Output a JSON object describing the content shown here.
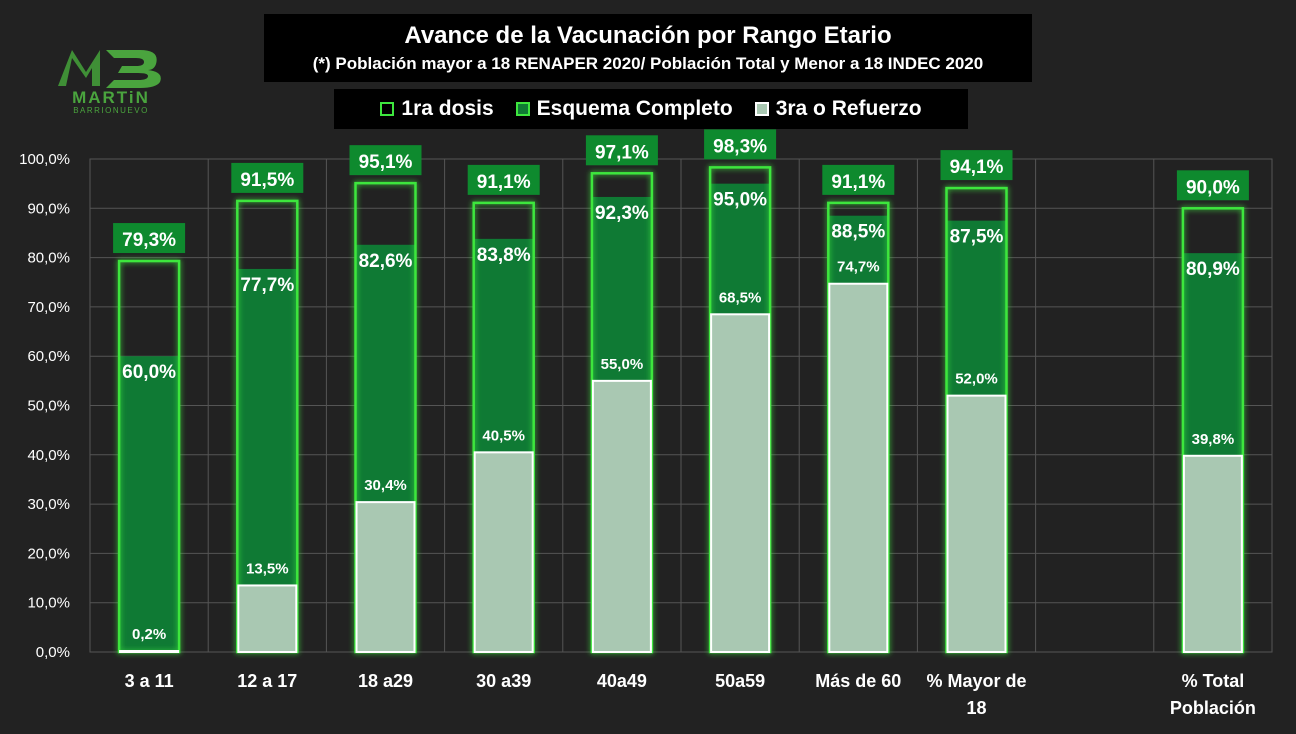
{
  "logo": {
    "name": "MARTiN",
    "surname": "BARRIONUEVO"
  },
  "colors": {
    "background": "#222222",
    "first_dose_border": "#3ee63e",
    "complete": "#0f7a34",
    "booster": "#a9c8b2",
    "booster_border": "#ffffff",
    "label_badge": "#0e8a2e",
    "grid": "#555555",
    "text": "#ffffff"
  },
  "chart_data": {
    "type": "bar",
    "title": "Avance de la Vacunación por Rango Etario",
    "subtitle": "(*) Población mayor a 18 RENAPER 2020/ Población Total y Menor a 18 INDEC 2020",
    "ylim": [
      0,
      100
    ],
    "yticks": [
      "0,0%",
      "10,0%",
      "20,0%",
      "30,0%",
      "40,0%",
      "50,0%",
      "60,0%",
      "70,0%",
      "80,0%",
      "90,0%",
      "100,0%"
    ],
    "categories": [
      "3 a 11",
      "12 a 17",
      "18 a29",
      "30 a39",
      "40a49",
      "50a59",
      "Más de 60",
      "% Mayor de 18",
      "",
      "% Total Población"
    ],
    "category_lines": [
      [
        "3 a 11"
      ],
      [
        "12 a 17"
      ],
      [
        "18 a29"
      ],
      [
        "30 a39"
      ],
      [
        "40a49"
      ],
      [
        "50a59"
      ],
      [
        "Más de 60"
      ],
      [
        "% Mayor de",
        "18"
      ],
      [
        ""
      ],
      [
        "% Total",
        "Población"
      ]
    ],
    "legend": [
      "1ra dosis",
      "Esquema Completo",
      "3ra o Refuerzo"
    ],
    "series": [
      {
        "name": "1ra dosis",
        "values": [
          79.3,
          91.5,
          95.1,
          91.1,
          97.1,
          98.3,
          91.1,
          94.1,
          null,
          90.0
        ],
        "labels": [
          "79,3%",
          "91,5%",
          "95,1%",
          "91,1%",
          "97,1%",
          "98,3%",
          "91,1%",
          "94,1%",
          "",
          "90,0%"
        ]
      },
      {
        "name": "Esquema Completo",
        "values": [
          60.0,
          77.7,
          82.6,
          83.8,
          92.3,
          95.0,
          88.5,
          87.5,
          null,
          80.9
        ],
        "labels": [
          "60,0%",
          "77,7%",
          "82,6%",
          "83,8%",
          "92,3%",
          "95,0%",
          "88,5%",
          "87,5%",
          "",
          "80,9%"
        ]
      },
      {
        "name": "3ra o Refuerzo",
        "values": [
          0.2,
          13.5,
          30.4,
          40.5,
          55.0,
          68.5,
          74.7,
          52.0,
          null,
          39.8
        ],
        "labels": [
          "0,2%",
          "13,5%",
          "30,4%",
          "40,5%",
          "55,0%",
          "68,5%",
          "74,7%",
          "52,0%",
          "",
          "39,8%"
        ]
      }
    ]
  }
}
